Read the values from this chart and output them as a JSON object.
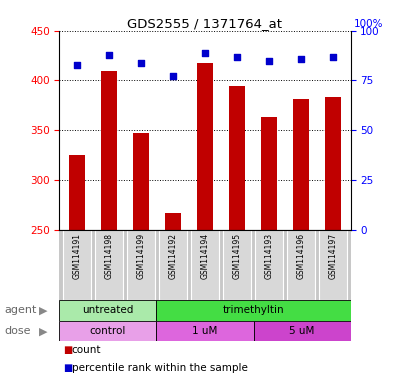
{
  "title": "GDS2555 / 1371764_at",
  "samples": [
    "GSM114191",
    "GSM114198",
    "GSM114199",
    "GSM114192",
    "GSM114194",
    "GSM114195",
    "GSM114193",
    "GSM114196",
    "GSM114197"
  ],
  "counts": [
    325,
    410,
    347,
    267,
    418,
    394,
    363,
    381,
    383
  ],
  "percentiles": [
    83,
    88,
    84,
    77,
    89,
    87,
    85,
    86,
    87
  ],
  "ylim_left": [
    250,
    450
  ],
  "ylim_right": [
    0,
    100
  ],
  "yticks_left": [
    250,
    300,
    350,
    400,
    450
  ],
  "yticks_right": [
    0,
    25,
    50,
    75,
    100
  ],
  "bar_color": "#c00000",
  "dot_color": "#0000cc",
  "agent_labels": [
    {
      "text": "untreated",
      "start": 0,
      "end": 3,
      "color": "#aaeaaa"
    },
    {
      "text": "trimethyltin",
      "start": 3,
      "end": 9,
      "color": "#44dd44"
    }
  ],
  "dose_labels": [
    {
      "text": "control",
      "start": 0,
      "end": 3,
      "color": "#e8a0e8"
    },
    {
      "text": "1 uM",
      "start": 3,
      "end": 6,
      "color": "#dd66dd"
    },
    {
      "text": "5 uM",
      "start": 6,
      "end": 9,
      "color": "#cc44cc"
    }
  ],
  "legend_count_label": "count",
  "legend_pct_label": "percentile rank within the sample",
  "agent_row_label": "agent",
  "dose_row_label": "dose",
  "bg_color": "#ffffff",
  "sample_area_color": "#c8c8c8",
  "sample_box_color": "#d8d8d8"
}
